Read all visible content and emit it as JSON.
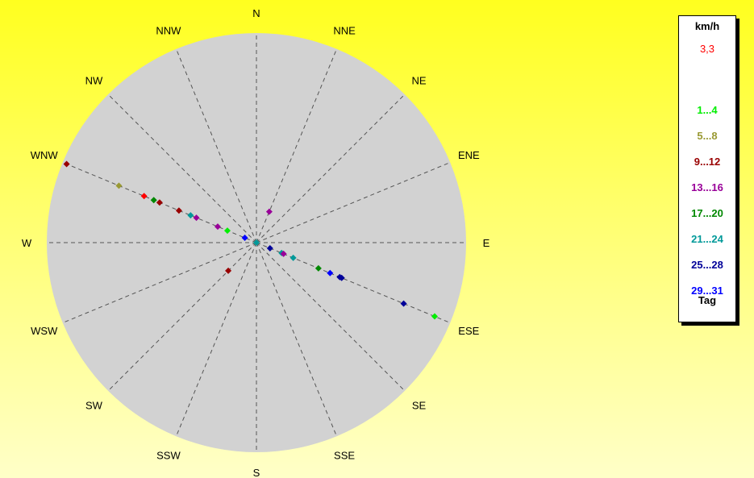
{
  "chart_data": {
    "type": "scatter",
    "projection": "polar",
    "directions": [
      "N",
      "NNE",
      "NE",
      "ENE",
      "E",
      "ESE",
      "SE",
      "SSE",
      "S",
      "SSW",
      "SW",
      "WSW",
      "W",
      "WNW",
      "NW",
      "NNW"
    ],
    "legend": {
      "title": "km/h",
      "current_value": "3,3",
      "footer": "Tag",
      "entries": [
        {
          "label": "1...4",
          "color": "#00ee00"
        },
        {
          "label": "5...8",
          "color": "#999933"
        },
        {
          "label": "9...12",
          "color": "#990000"
        },
        {
          "label": "13...16",
          "color": "#990099"
        },
        {
          "label": "17...20",
          "color": "#008800"
        },
        {
          "label": "21...24",
          "color": "#009999"
        },
        {
          "label": "25...28",
          "color": "#000099"
        },
        {
          "label": "29...31",
          "color": "#0000ff"
        }
      ]
    },
    "radius_max": 1.0,
    "points": [
      {
        "bearing": 292.5,
        "r": 0.98,
        "color": "#990000"
      },
      {
        "bearing": 292.5,
        "r": 0.71,
        "color": "#999933"
      },
      {
        "bearing": 292.5,
        "r": 0.58,
        "color": "#ff0000"
      },
      {
        "bearing": 292.5,
        "r": 0.53,
        "color": "#008800"
      },
      {
        "bearing": 292.5,
        "r": 0.5,
        "color": "#990000"
      },
      {
        "bearing": 292.5,
        "r": 0.4,
        "color": "#990000"
      },
      {
        "bearing": 292.5,
        "r": 0.34,
        "color": "#009999"
      },
      {
        "bearing": 292.5,
        "r": 0.31,
        "color": "#990099"
      },
      {
        "bearing": 292.5,
        "r": 0.2,
        "color": "#990099"
      },
      {
        "bearing": 292.5,
        "r": 0.15,
        "color": "#00ee00"
      },
      {
        "bearing": 292.5,
        "r": 0.06,
        "color": "#0000ff"
      },
      {
        "bearing": 22.5,
        "r": 0.16,
        "color": "#990099"
      },
      {
        "bearing": 225,
        "r": 0.19,
        "color": "#990000"
      },
      {
        "bearing": 112.5,
        "r": 0.07,
        "color": "#000099"
      },
      {
        "bearing": 112.5,
        "r": 0.13,
        "color": "#009999"
      },
      {
        "bearing": 112.5,
        "r": 0.14,
        "color": "#990099"
      },
      {
        "bearing": 112.5,
        "r": 0.19,
        "color": "#009999"
      },
      {
        "bearing": 112.5,
        "r": 0.32,
        "color": "#008800"
      },
      {
        "bearing": 112.5,
        "r": 0.38,
        "color": "#0000ff"
      },
      {
        "bearing": 112.5,
        "r": 0.43,
        "color": "#000099"
      },
      {
        "bearing": 112.5,
        "r": 0.44,
        "color": "#000099"
      },
      {
        "bearing": 112.5,
        "r": 0.76,
        "color": "#000099"
      },
      {
        "bearing": 112.5,
        "r": 0.92,
        "color": "#00ee00"
      },
      {
        "bearing": 0,
        "r": 0.0,
        "color": "#009999"
      }
    ]
  }
}
